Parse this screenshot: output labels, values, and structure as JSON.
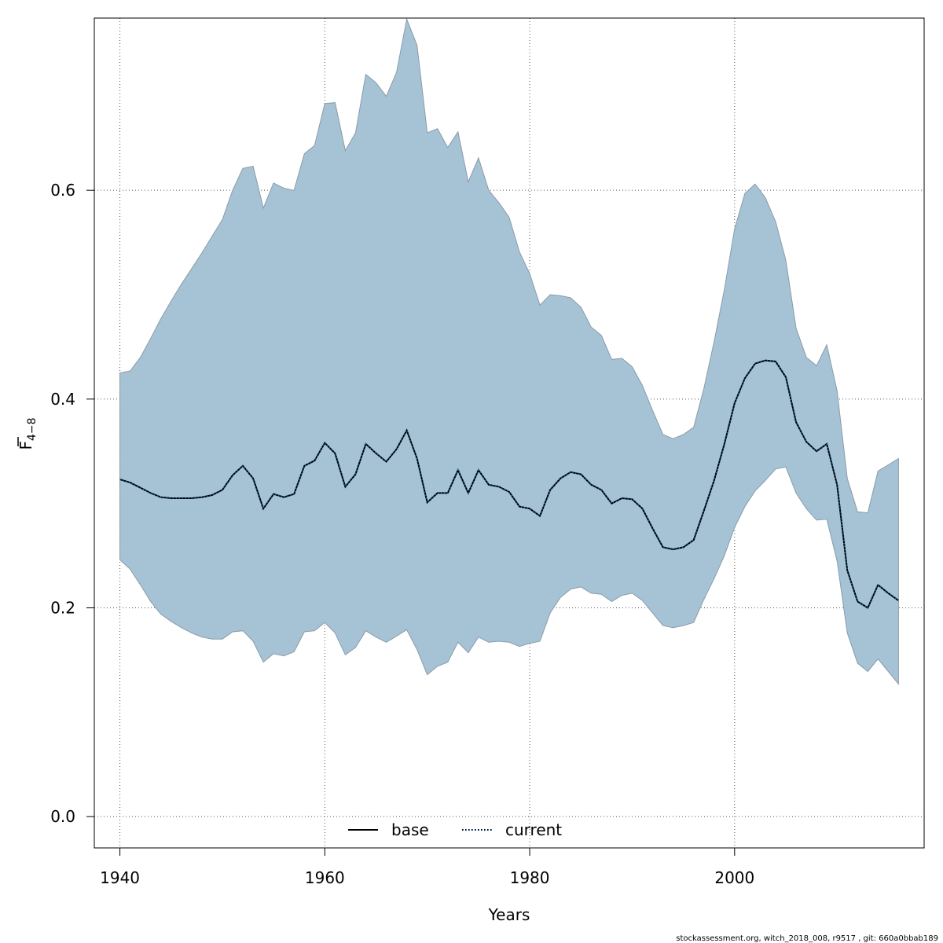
{
  "chart_data": {
    "type": "area",
    "xlabel": "Years",
    "ylabel_main": "F",
    "ylabel_sub": "4−8",
    "xlim": [
      1937.5,
      2018.5
    ],
    "ylim": [
      -0.03,
      0.765
    ],
    "xticks": [
      1940,
      1960,
      1980,
      2000
    ],
    "yticks": [
      0.0,
      0.2,
      0.4,
      0.6
    ],
    "ytick_labels": [
      "0.0",
      "0.2",
      "0.4",
      "0.6"
    ],
    "grid": true,
    "legend_position": "bottom-center",
    "colors": {
      "band": "#a6c3d5",
      "band_edge": "#8a9ba8",
      "base": "#000000",
      "current_dots": "#1f6fb4"
    },
    "x": [
      1940,
      1941,
      1942,
      1943,
      1944,
      1945,
      1946,
      1947,
      1948,
      1949,
      1950,
      1951,
      1952,
      1953,
      1954,
      1955,
      1956,
      1957,
      1958,
      1959,
      1960,
      1961,
      1962,
      1963,
      1964,
      1965,
      1966,
      1967,
      1968,
      1969,
      1970,
      1971,
      1972,
      1973,
      1974,
      1975,
      1976,
      1977,
      1978,
      1979,
      1980,
      1981,
      1982,
      1983,
      1984,
      1985,
      1986,
      1987,
      1988,
      1989,
      1990,
      1991,
      1992,
      1993,
      1994,
      1995,
      1996,
      1997,
      1998,
      1999,
      2000,
      2001,
      2002,
      2003,
      2004,
      2005,
      2006,
      2007,
      2008,
      2009,
      2010,
      2011,
      2012,
      2013,
      2014,
      2015,
      2016
    ],
    "upper": [
      0.425,
      0.427,
      0.44,
      0.458,
      0.477,
      0.494,
      0.51,
      0.525,
      0.54,
      0.556,
      0.572,
      0.6,
      0.621,
      0.623,
      0.583,
      0.607,
      0.602,
      0.6,
      0.635,
      0.643,
      0.683,
      0.684,
      0.638,
      0.655,
      0.711,
      0.703,
      0.69,
      0.713,
      0.764,
      0.739,
      0.655,
      0.659,
      0.641,
      0.656,
      0.608,
      0.631,
      0.6,
      0.588,
      0.574,
      0.541,
      0.52,
      0.49,
      0.5,
      0.499,
      0.497,
      0.488,
      0.469,
      0.461,
      0.438,
      0.439,
      0.431,
      0.413,
      0.389,
      0.366,
      0.362,
      0.366,
      0.373,
      0.41,
      0.455,
      0.505,
      0.563,
      0.597,
      0.606,
      0.593,
      0.57,
      0.533,
      0.468,
      0.44,
      0.432,
      0.452,
      0.408,
      0.324,
      0.292,
      0.291,
      0.331,
      0.337,
      0.343
    ],
    "lower": [
      0.246,
      0.237,
      0.222,
      0.206,
      0.194,
      0.187,
      0.181,
      0.176,
      0.172,
      0.17,
      0.17,
      0.177,
      0.178,
      0.168,
      0.148,
      0.156,
      0.154,
      0.158,
      0.177,
      0.178,
      0.186,
      0.176,
      0.155,
      0.162,
      0.178,
      0.172,
      0.167,
      0.173,
      0.179,
      0.16,
      0.136,
      0.144,
      0.148,
      0.167,
      0.157,
      0.172,
      0.167,
      0.168,
      0.167,
      0.163,
      0.166,
      0.168,
      0.195,
      0.21,
      0.218,
      0.22,
      0.214,
      0.213,
      0.206,
      0.212,
      0.214,
      0.207,
      0.195,
      0.183,
      0.181,
      0.183,
      0.186,
      0.208,
      0.228,
      0.25,
      0.277,
      0.297,
      0.312,
      0.322,
      0.333,
      0.335,
      0.31,
      0.295,
      0.284,
      0.285,
      0.245,
      0.176,
      0.147,
      0.139,
      0.151,
      0.139,
      0.127
    ],
    "series": [
      {
        "name": "base",
        "style": "solid",
        "values": [
          0.323,
          0.32,
          0.315,
          0.31,
          0.306,
          0.305,
          0.305,
          0.305,
          0.306,
          0.308,
          0.313,
          0.327,
          0.336,
          0.324,
          0.295,
          0.309,
          0.306,
          0.309,
          0.336,
          0.341,
          0.358,
          0.348,
          0.316,
          0.328,
          0.357,
          0.348,
          0.34,
          0.352,
          0.37,
          0.343,
          0.301,
          0.31,
          0.31,
          0.332,
          0.31,
          0.332,
          0.318,
          0.316,
          0.311,
          0.297,
          0.295,
          0.288,
          0.313,
          0.324,
          0.33,
          0.328,
          0.318,
          0.313,
          0.3,
          0.305,
          0.304,
          0.295,
          0.276,
          0.258,
          0.256,
          0.258,
          0.265,
          0.293,
          0.322,
          0.357,
          0.396,
          0.42,
          0.434,
          0.437,
          0.436,
          0.421,
          0.378,
          0.359,
          0.35,
          0.357,
          0.318,
          0.236,
          0.206,
          0.2,
          0.222,
          0.214,
          0.207
        ]
      },
      {
        "name": "current",
        "style": "dotted",
        "values": [
          0.323,
          0.32,
          0.315,
          0.31,
          0.306,
          0.305,
          0.305,
          0.305,
          0.306,
          0.308,
          0.313,
          0.327,
          0.336,
          0.324,
          0.295,
          0.309,
          0.306,
          0.309,
          0.336,
          0.341,
          0.358,
          0.348,
          0.316,
          0.328,
          0.357,
          0.348,
          0.34,
          0.352,
          0.37,
          0.343,
          0.301,
          0.31,
          0.31,
          0.332,
          0.31,
          0.332,
          0.318,
          0.316,
          0.311,
          0.297,
          0.295,
          0.288,
          0.313,
          0.324,
          0.33,
          0.328,
          0.318,
          0.313,
          0.3,
          0.305,
          0.304,
          0.295,
          0.276,
          0.258,
          0.256,
          0.258,
          0.265,
          0.293,
          0.322,
          0.357,
          0.396,
          0.42,
          0.434,
          0.437,
          0.436,
          0.421,
          0.378,
          0.359,
          0.35,
          0.357,
          0.318,
          0.236,
          0.206,
          0.2,
          0.222,
          0.214,
          0.207
        ]
      }
    ]
  },
  "footer": "stockassessment.org, witch_2018_008, r9517 , git: 660a0bbab189"
}
